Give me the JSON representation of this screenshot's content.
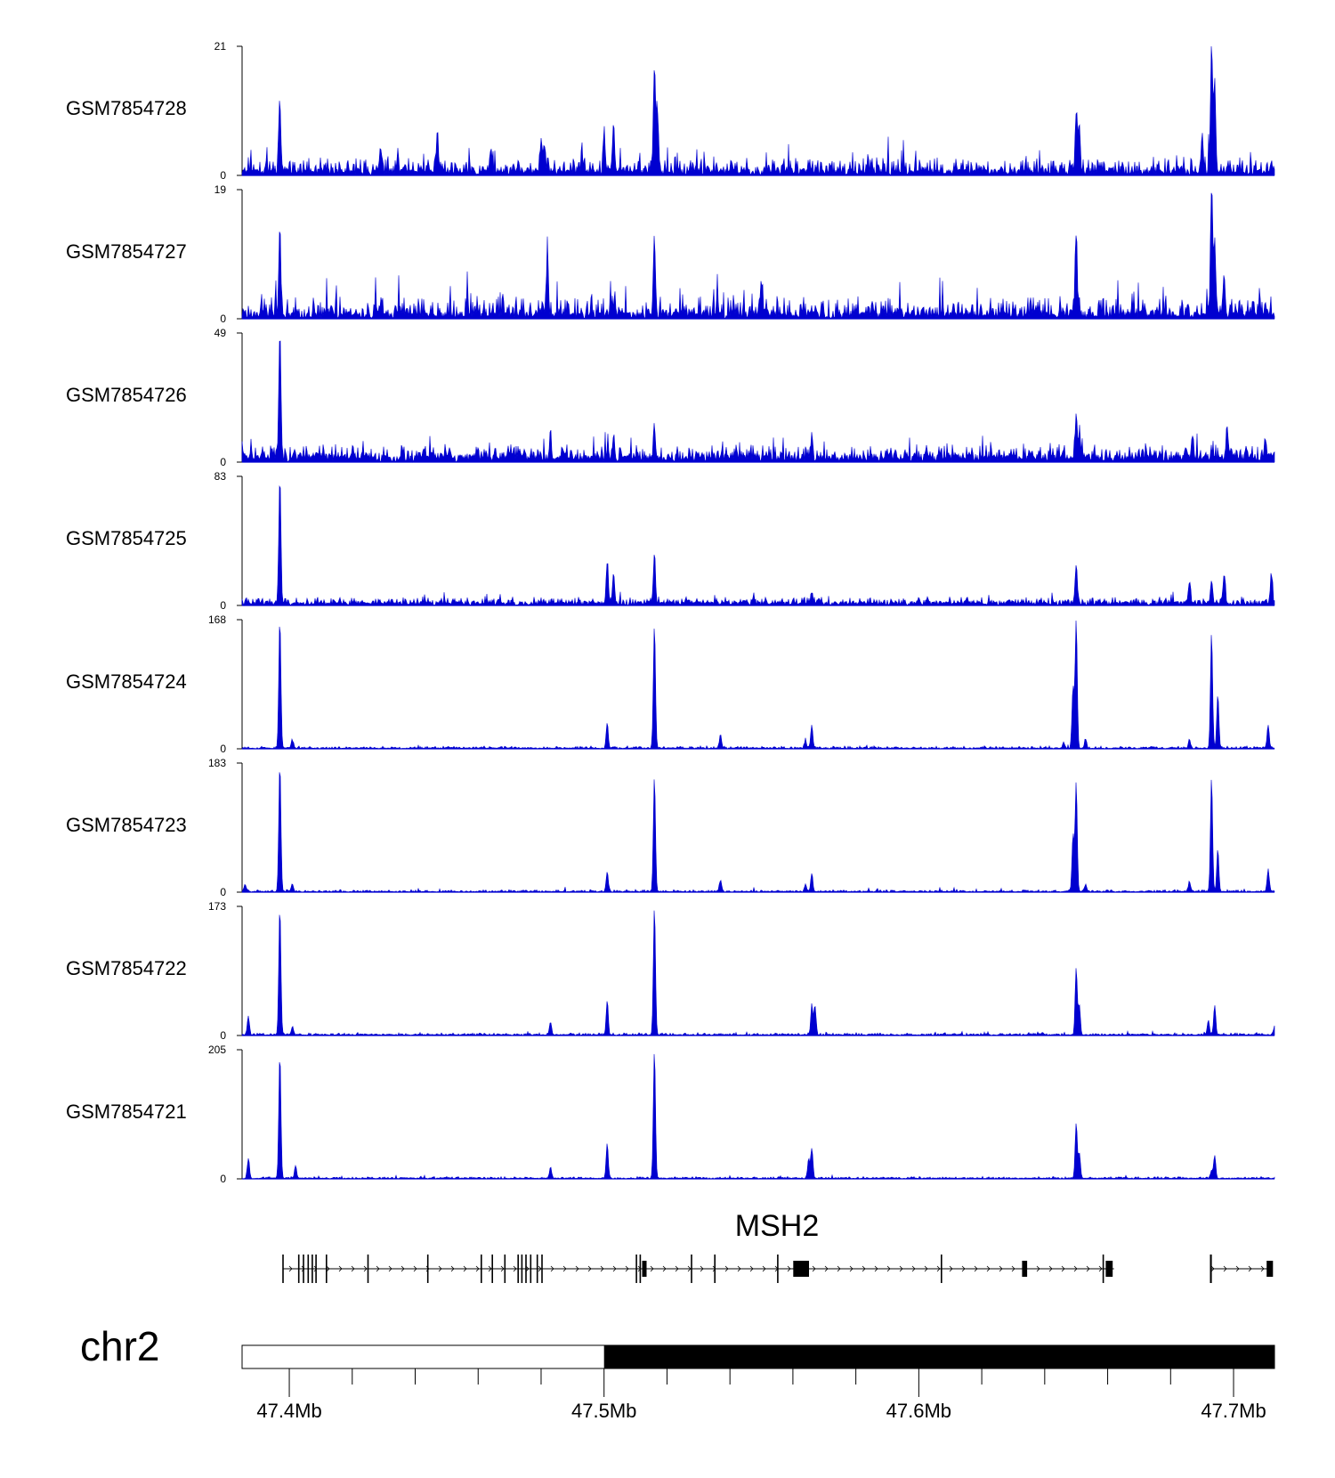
{
  "chart_data": {
    "type": "area",
    "genome": {
      "chromosome": "chr2",
      "region": [
        47.385,
        47.713
      ],
      "tick_labels": [
        "47.4Mb",
        "47.5Mb",
        "47.6Mb",
        "47.7Mb"
      ],
      "tick_values": [
        47.4,
        47.5,
        47.6,
        47.7
      ],
      "minor_tick_values": [
        47.42,
        47.44,
        47.46,
        47.48,
        47.52,
        47.54,
        47.56,
        47.58,
        47.62,
        47.64,
        47.66,
        47.68
      ],
      "ideogram_highlight_start": 47.5,
      "color": "#0000d0"
    },
    "tracks": [
      {
        "name": "GSM7854728",
        "ylim": [
          0,
          21
        ],
        "ymax_label": "21",
        "ymin_label": "0",
        "baseline": 1.0,
        "noise": 2.2,
        "spike_prob": 0.05,
        "seed": 11,
        "peaks": [
          [
            47.397,
            11
          ],
          [
            47.429,
            3.5
          ],
          [
            47.447,
            6
          ],
          [
            47.464,
            4
          ],
          [
            47.481,
            4
          ],
          [
            47.48,
            5
          ],
          [
            47.5,
            6
          ],
          [
            47.503,
            8
          ],
          [
            47.516,
            17.5
          ],
          [
            47.517,
            10
          ],
          [
            47.65,
            10
          ],
          [
            47.651,
            8
          ],
          [
            47.693,
            20.5
          ],
          [
            47.694,
            15
          ],
          [
            47.69,
            6
          ]
        ]
      },
      {
        "name": "GSM7854727",
        "ylim": [
          0,
          19
        ],
        "ymax_label": "19",
        "ymin_label": "0",
        "baseline": 1.0,
        "noise": 2.6,
        "spike_prob": 0.055,
        "seed": 23,
        "peaks": [
          [
            47.397,
            11
          ],
          [
            47.482,
            9
          ],
          [
            47.516,
            11
          ],
          [
            47.55,
            5
          ],
          [
            47.65,
            11.5
          ],
          [
            47.693,
            18.5
          ],
          [
            47.694,
            11
          ],
          [
            47.697,
            6
          ]
        ]
      },
      {
        "name": "GSM7854726",
        "ylim": [
          0,
          49
        ],
        "ymax_label": "49",
        "ymin_label": "0",
        "baseline": 3.0,
        "noise": 4.5,
        "spike_prob": 0.04,
        "seed": 37,
        "peaks": [
          [
            47.397,
            48
          ],
          [
            47.385,
            6
          ],
          [
            47.483,
            8
          ],
          [
            47.503,
            7
          ],
          [
            47.516,
            13
          ],
          [
            47.566,
            8
          ],
          [
            47.65,
            18
          ],
          [
            47.651,
            9
          ],
          [
            47.687,
            8
          ],
          [
            47.698,
            12
          ],
          [
            47.71,
            7
          ]
        ]
      },
      {
        "name": "GSM7854725",
        "ylim": [
          0,
          83
        ],
        "ymax_label": "83",
        "ymin_label": "0",
        "baseline": 2.5,
        "noise": 3.5,
        "spike_prob": 0.03,
        "seed": 41,
        "peaks": [
          [
            47.397,
            82
          ],
          [
            47.501,
            26
          ],
          [
            47.503,
            18
          ],
          [
            47.516,
            32
          ],
          [
            47.566,
            6
          ],
          [
            47.65,
            25
          ],
          [
            47.686,
            15
          ],
          [
            47.693,
            13
          ],
          [
            47.697,
            20
          ],
          [
            47.712,
            18
          ]
        ]
      },
      {
        "name": "GSM7854724",
        "ylim": [
          0,
          168
        ],
        "ymax_label": "168",
        "ymin_label": "0",
        "baseline": 1.5,
        "noise": 2.5,
        "spike_prob": 0.02,
        "seed": 53,
        "peaks": [
          [
            47.397,
            167
          ],
          [
            47.401,
            10
          ],
          [
            47.501,
            32
          ],
          [
            47.516,
            160
          ],
          [
            47.537,
            18
          ],
          [
            47.566,
            30
          ],
          [
            47.564,
            10
          ],
          [
            47.646,
            8
          ],
          [
            47.65,
            167
          ],
          [
            47.649,
            80
          ],
          [
            47.653,
            12
          ],
          [
            47.686,
            12
          ],
          [
            47.693,
            150
          ],
          [
            47.695,
            70
          ],
          [
            47.711,
            30
          ]
        ]
      },
      {
        "name": "GSM7854723",
        "ylim": [
          0,
          183
        ],
        "ymax_label": "183",
        "ymin_label": "0",
        "baseline": 1.5,
        "noise": 2.5,
        "spike_prob": 0.02,
        "seed": 59,
        "peaks": [
          [
            47.397,
            182
          ],
          [
            47.386,
            10
          ],
          [
            47.401,
            10
          ],
          [
            47.501,
            28
          ],
          [
            47.516,
            162
          ],
          [
            47.537,
            16
          ],
          [
            47.566,
            25
          ],
          [
            47.564,
            10
          ],
          [
            47.65,
            155
          ],
          [
            47.649,
            80
          ],
          [
            47.653,
            10
          ],
          [
            47.686,
            14
          ],
          [
            47.693,
            162
          ],
          [
            47.695,
            60
          ],
          [
            47.711,
            32
          ]
        ]
      },
      {
        "name": "GSM7854722",
        "ylim": [
          0,
          173
        ],
        "ymax_label": "173",
        "ymin_label": "0",
        "baseline": 1.5,
        "noise": 2.5,
        "spike_prob": 0.02,
        "seed": 61,
        "peaks": [
          [
            47.397,
            172
          ],
          [
            47.387,
            25
          ],
          [
            47.401,
            12
          ],
          [
            47.483,
            18
          ],
          [
            47.501,
            45
          ],
          [
            47.516,
            172
          ],
          [
            47.566,
            40
          ],
          [
            47.567,
            40
          ],
          [
            47.65,
            90
          ],
          [
            47.651,
            40
          ],
          [
            47.692,
            20
          ],
          [
            47.694,
            40
          ],
          [
            47.713,
            10
          ]
        ]
      },
      {
        "name": "GSM7854721",
        "ylim": [
          0,
          205
        ],
        "ymax_label": "205",
        "ymin_label": "0",
        "baseline": 1.5,
        "noise": 2.5,
        "spike_prob": 0.02,
        "seed": 67,
        "peaks": [
          [
            47.397,
            198
          ],
          [
            47.387,
            32
          ],
          [
            47.402,
            20
          ],
          [
            47.483,
            18
          ],
          [
            47.501,
            55
          ],
          [
            47.516,
            204
          ],
          [
            47.566,
            48
          ],
          [
            47.565,
            30
          ],
          [
            47.65,
            88
          ],
          [
            47.651,
            40
          ],
          [
            47.693,
            13
          ],
          [
            47.694,
            35
          ]
        ]
      }
    ],
    "gene": {
      "name": "MSH2",
      "strand": "+",
      "segments": [
        [
          47.398,
          47.711
        ]
      ],
      "exons": [
        [
          47.398,
          0.4
        ],
        [
          47.403,
          0.4
        ],
        [
          47.4045,
          0.4
        ],
        [
          47.406,
          0.4
        ],
        [
          47.4073,
          0.4
        ],
        [
          47.4085,
          0.4
        ],
        [
          47.4118,
          0.4
        ],
        [
          47.425,
          0.4
        ],
        [
          47.444,
          0.4
        ],
        [
          47.461,
          0.4
        ],
        [
          47.4645,
          0.4
        ],
        [
          47.4685,
          0.4
        ],
        [
          47.4727,
          0.4
        ],
        [
          47.4739,
          0.4
        ],
        [
          47.4752,
          0.4
        ],
        [
          47.4767,
          0.4
        ],
        [
          47.4788,
          0.4
        ],
        [
          47.4803,
          0.4
        ],
        [
          47.5103,
          0.4
        ],
        [
          47.5115,
          0.4
        ],
        [
          47.5128,
          1.4
        ],
        [
          47.5278,
          0.4
        ],
        [
          47.5352,
          0.4
        ],
        [
          47.5552,
          0.4
        ],
        [
          47.5626,
          5.0
        ],
        [
          47.6072,
          0.4
        ],
        [
          47.6336,
          1.6
        ],
        [
          47.6586,
          0.4
        ],
        [
          47.6605,
          2.2
        ],
        [
          47.6928,
          0.6
        ],
        [
          47.7115,
          2.0
        ]
      ],
      "gap": [
        47.662,
        47.6925
      ]
    }
  }
}
